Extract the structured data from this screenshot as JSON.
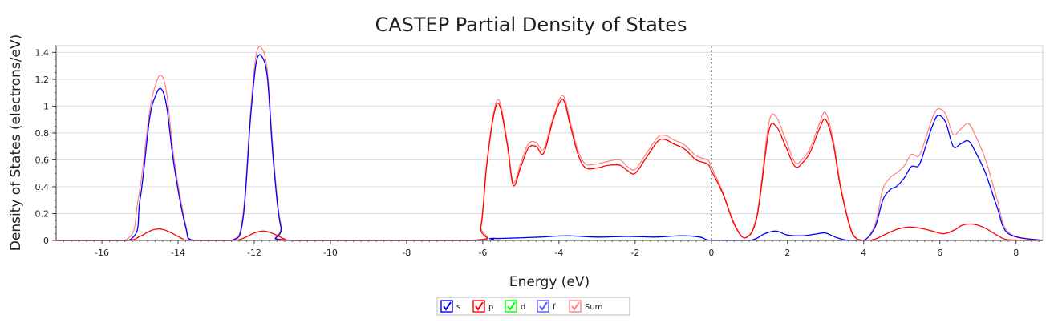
{
  "chart_data": {
    "type": "line",
    "title": "CASTEP Partial  Density of States",
    "xlabel": "Energy (eV)",
    "ylabel": "Density of States (electrons/eV)",
    "xlim": [
      -17.2,
      8.7
    ],
    "ylim": [
      0,
      1.45
    ],
    "xticks": [
      -16,
      -14,
      -12,
      -10,
      -8,
      -6,
      -4,
      -2,
      0,
      2,
      4,
      6,
      8
    ],
    "yticks": [
      0,
      0.2,
      0.4,
      0.6,
      0.8,
      1,
      1.2,
      1.4
    ],
    "xtick_labels": [
      "-16",
      "-14",
      "-12",
      "-10",
      "-8",
      "-6",
      "-4",
      "-2",
      "0",
      "2",
      "4",
      "6",
      "8"
    ],
    "ytick_labels": [
      "0",
      "0.2",
      "0.4",
      "0.6",
      "0.8",
      "1",
      "1.2",
      "1.4"
    ],
    "grid": "horizontal",
    "fermi_level": 0,
    "legend_position": "bottom-center",
    "series": [
      {
        "name": "s",
        "color": "#0000ff",
        "checked": true,
        "x": [
          -17.2,
          -15.3,
          -15.0,
          -14.75,
          -14.6,
          -14.45,
          -14.3,
          -14.1,
          -13.8,
          -13.6,
          -12.6,
          -12.3,
          -12.1,
          -11.95,
          -11.8,
          -11.65,
          -11.5,
          -11.3,
          -11.0,
          -6.2,
          -5.8,
          -5.5,
          -4.5,
          -3.8,
          -3.0,
          -2.2,
          -1.5,
          -0.8,
          -0.3,
          0.0,
          1.0,
          1.4,
          1.7,
          2.0,
          2.4,
          2.8,
          3.0,
          3.3,
          3.6,
          4.0,
          4.3,
          4.5,
          4.7,
          4.85,
          5.05,
          5.25,
          5.45,
          5.65,
          5.8,
          5.95,
          6.15,
          6.35,
          6.55,
          6.75,
          6.95,
          7.2,
          7.5,
          7.8,
          8.7
        ],
        "y": [
          0,
          0,
          0.3,
          0.9,
          1.07,
          1.13,
          1.0,
          0.55,
          0.1,
          0,
          0,
          0.15,
          0.9,
          1.32,
          1.37,
          1.2,
          0.6,
          0.1,
          0,
          0,
          0.015,
          0.015,
          0.025,
          0.035,
          0.025,
          0.03,
          0.025,
          0.035,
          0.025,
          0,
          0,
          0.05,
          0.07,
          0.04,
          0.035,
          0.05,
          0.055,
          0.02,
          0,
          0,
          0.1,
          0.3,
          0.38,
          0.4,
          0.46,
          0.55,
          0.56,
          0.72,
          0.85,
          0.93,
          0.88,
          0.7,
          0.72,
          0.74,
          0.65,
          0.5,
          0.25,
          0.05,
          0
        ]
      },
      {
        "name": "p",
        "color": "#ff0000",
        "checked": true,
        "x": [
          -17.2,
          -15.4,
          -15.0,
          -14.7,
          -14.45,
          -14.2,
          -13.9,
          -13.7,
          -12.6,
          -12.3,
          -12.0,
          -11.75,
          -11.5,
          -11.2,
          -11.0,
          -6.3,
          -6.05,
          -5.9,
          -5.7,
          -5.55,
          -5.35,
          -5.2,
          -5.0,
          -4.8,
          -4.6,
          -4.4,
          -4.15,
          -3.9,
          -3.7,
          -3.5,
          -3.3,
          -3.0,
          -2.7,
          -2.4,
          -2.2,
          -2.0,
          -1.7,
          -1.4,
          -1.2,
          -1.0,
          -0.7,
          -0.4,
          -0.1,
          0.0,
          0.3,
          0.6,
          0.9,
          1.2,
          1.5,
          1.7,
          1.95,
          2.2,
          2.4,
          2.6,
          2.85,
          3.0,
          3.2,
          3.4,
          3.7,
          4.0,
          4.3,
          4.6,
          4.9,
          5.2,
          5.5,
          5.8,
          6.1,
          6.4,
          6.6,
          6.9,
          7.2,
          7.5,
          7.8,
          8.7
        ],
        "y": [
          0,
          0,
          0.03,
          0.075,
          0.085,
          0.06,
          0.015,
          0,
          0,
          0.015,
          0.055,
          0.07,
          0.05,
          0.01,
          0,
          0,
          0.1,
          0.55,
          0.95,
          1.0,
          0.7,
          0.41,
          0.55,
          0.69,
          0.7,
          0.65,
          0.9,
          1.05,
          0.85,
          0.64,
          0.54,
          0.54,
          0.56,
          0.56,
          0.52,
          0.5,
          0.62,
          0.74,
          0.75,
          0.72,
          0.68,
          0.6,
          0.57,
          0.52,
          0.35,
          0.12,
          0.02,
          0.18,
          0.8,
          0.85,
          0.7,
          0.55,
          0.58,
          0.66,
          0.84,
          0.9,
          0.72,
          0.38,
          0.05,
          0,
          0.01,
          0.05,
          0.085,
          0.1,
          0.09,
          0.07,
          0.05,
          0.08,
          0.115,
          0.12,
          0.09,
          0.04,
          0.005,
          0
        ]
      },
      {
        "name": "d",
        "color": "#00ff00",
        "checked": true,
        "x": [],
        "y": []
      },
      {
        "name": "f",
        "color": "#5555ff",
        "checked": true,
        "x": [],
        "y": []
      },
      {
        "name": "Sum",
        "color": "#ff8080",
        "checked": true,
        "x": [
          -17.2,
          -15.4,
          -15.05,
          -14.75,
          -14.6,
          -14.45,
          -14.3,
          -14.1,
          -13.8,
          -13.6,
          -12.6,
          -12.3,
          -12.1,
          -11.95,
          -11.8,
          -11.65,
          -11.5,
          -11.3,
          -11.0,
          -6.3,
          -6.05,
          -5.9,
          -5.7,
          -5.55,
          -5.35,
          -5.2,
          -5.0,
          -4.8,
          -4.6,
          -4.4,
          -4.15,
          -3.9,
          -3.7,
          -3.5,
          -3.3,
          -3.0,
          -2.7,
          -2.4,
          -2.2,
          -2.0,
          -1.7,
          -1.4,
          -1.2,
          -1.0,
          -0.7,
          -0.4,
          -0.1,
          0.0,
          0.3,
          0.6,
          0.9,
          1.2,
          1.5,
          1.7,
          1.95,
          2.2,
          2.4,
          2.6,
          2.85,
          3.0,
          3.2,
          3.4,
          3.7,
          4.0,
          4.3,
          4.5,
          4.7,
          4.85,
          5.05,
          5.25,
          5.45,
          5.65,
          5.8,
          5.95,
          6.15,
          6.35,
          6.55,
          6.75,
          6.95,
          7.2,
          7.5,
          7.8,
          8.7
        ],
        "y": [
          0,
          0,
          0.3,
          0.95,
          1.15,
          1.23,
          1.1,
          0.6,
          0.12,
          0,
          0,
          0.18,
          0.95,
          1.38,
          1.43,
          1.25,
          0.65,
          0.12,
          0,
          0,
          0.12,
          0.57,
          0.97,
          1.03,
          0.72,
          0.43,
          0.58,
          0.72,
          0.73,
          0.68,
          0.92,
          1.08,
          0.88,
          0.67,
          0.57,
          0.57,
          0.59,
          0.6,
          0.55,
          0.53,
          0.65,
          0.77,
          0.78,
          0.75,
          0.71,
          0.63,
          0.6,
          0.55,
          0.36,
          0.13,
          0.02,
          0.2,
          0.86,
          0.92,
          0.75,
          0.58,
          0.61,
          0.69,
          0.88,
          0.95,
          0.75,
          0.4,
          0.06,
          0,
          0.12,
          0.38,
          0.47,
          0.5,
          0.55,
          0.64,
          0.63,
          0.78,
          0.91,
          0.98,
          0.94,
          0.79,
          0.83,
          0.87,
          0.77,
          0.6,
          0.31,
          0.06,
          0
        ]
      }
    ]
  }
}
